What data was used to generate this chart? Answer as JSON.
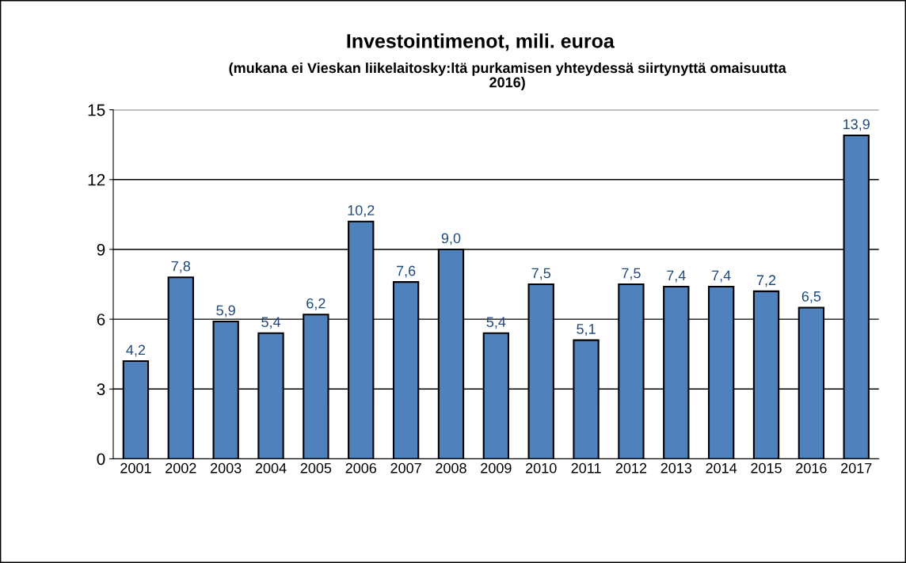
{
  "chart_data": {
    "type": "bar",
    "title": "Investointimenot, mili. euroa",
    "subtitle": "(mukana ei Vieskan liikelaitosky:ltä purkamisen yhteydessä siirtynyttä omaisuutta\n2016)",
    "categories": [
      "2001",
      "2002",
      "2003",
      "2004",
      "2005",
      "2006",
      "2007",
      "2008",
      "2009",
      "2010",
      "2011",
      "2012",
      "2013",
      "2014",
      "2015",
      "2016",
      "2017"
    ],
    "values": [
      4.2,
      7.8,
      5.9,
      5.4,
      6.2,
      10.2,
      7.6,
      9.0,
      5.4,
      7.5,
      5.1,
      7.5,
      7.4,
      7.4,
      7.2,
      6.5,
      13.9
    ],
    "value_labels": [
      "4,2",
      "7,8",
      "5,9",
      "5,4",
      "6,2",
      "10,2",
      "7,6",
      "9,0",
      "5,4",
      "7,5",
      "5,1",
      "7,5",
      "7,4",
      "7,4",
      "7,2",
      "6,5",
      "13,9"
    ],
    "color": "#4f81bd",
    "ylim": [
      0,
      15
    ],
    "yticks": [
      0,
      3,
      6,
      9,
      12,
      15
    ],
    "grid": "y",
    "legend": false
  }
}
